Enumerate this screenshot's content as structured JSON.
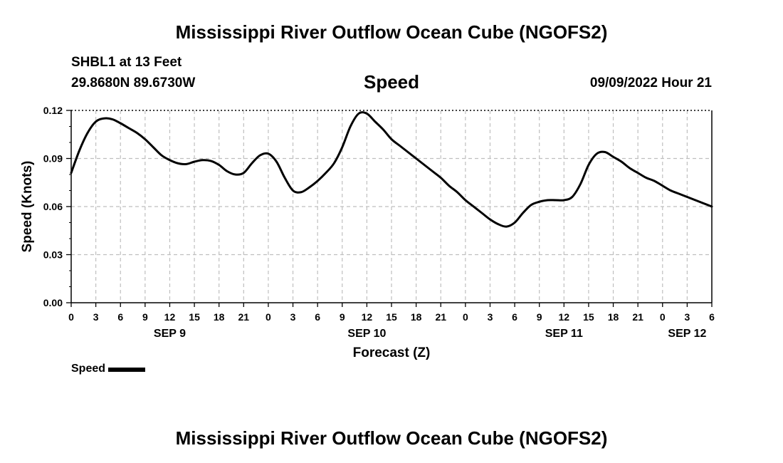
{
  "header": {
    "title": "Mississippi River Outflow Ocean Cube (NGOFS2)",
    "station": "SHBL1 at 13 Feet",
    "coords": "29.8680N  89.6730W",
    "parameter": "Speed",
    "timestamp": "09/09/2022 Hour 21"
  },
  "footer": {
    "title": "Mississippi River Outflow Ocean Cube (NGOFS2)"
  },
  "legend": {
    "label": "Speed"
  },
  "colors": {
    "line": "#000000",
    "grid": "#bfbfbf",
    "axis": "#000000"
  },
  "chart_data": {
    "type": "line",
    "title": "Speed",
    "xlabel": "Forecast (Z)",
    "ylabel": "Speed (Knots)",
    "xlim": [
      0,
      78
    ],
    "ylim": [
      0,
      0.12
    ],
    "grid": true,
    "x_tick_labels": [
      "0",
      "3",
      "6",
      "9",
      "12",
      "15",
      "18",
      "21",
      "0",
      "3",
      "6",
      "9",
      "12",
      "15",
      "18",
      "21",
      "0",
      "3",
      "6",
      "9",
      "12",
      "15",
      "18",
      "21",
      "0",
      "3",
      "6"
    ],
    "y_ticks": [
      0,
      0.03,
      0.06,
      0.09,
      0.12
    ],
    "y_tick_labels": [
      "0.00",
      "0.03",
      "0.06",
      "0.09",
      "0.12"
    ],
    "date_labels": [
      {
        "label": "SEP 9",
        "hour": 12
      },
      {
        "label": "SEP 10",
        "hour": 36
      },
      {
        "label": "SEP 11",
        "hour": 60
      },
      {
        "label": "SEP 12",
        "hour": 75
      }
    ],
    "series": [
      {
        "name": "Speed",
        "x": [
          0,
          1,
          2,
          3,
          4,
          5,
          6,
          7,
          8,
          9,
          10,
          11,
          12,
          13,
          14,
          15,
          16,
          17,
          18,
          19,
          20,
          21,
          22,
          23,
          24,
          25,
          26,
          27,
          28,
          29,
          30,
          31,
          32,
          33,
          34,
          35,
          36,
          37,
          38,
          39,
          40,
          41,
          42,
          43,
          44,
          45,
          46,
          47,
          48,
          49,
          50,
          51,
          52,
          53,
          54,
          55,
          56,
          57,
          58,
          59,
          60,
          61,
          62,
          63,
          64,
          65,
          66,
          67,
          68,
          69,
          70,
          71,
          72,
          73,
          74,
          75,
          76,
          77,
          78
        ],
        "values": [
          0.081,
          0.095,
          0.106,
          0.113,
          0.115,
          0.1145,
          0.112,
          0.109,
          0.106,
          0.102,
          0.097,
          0.092,
          0.089,
          0.087,
          0.0865,
          0.088,
          0.089,
          0.0885,
          0.086,
          0.082,
          0.08,
          0.081,
          0.087,
          0.092,
          0.093,
          0.088,
          0.078,
          0.07,
          0.069,
          0.072,
          0.076,
          0.081,
          0.087,
          0.097,
          0.11,
          0.118,
          0.118,
          0.113,
          0.108,
          0.102,
          0.098,
          0.094,
          0.09,
          0.086,
          0.082,
          0.078,
          0.073,
          0.069,
          0.064,
          0.06,
          0.056,
          0.052,
          0.049,
          0.0475,
          0.05,
          0.056,
          0.061,
          0.063,
          0.064,
          0.064,
          0.064,
          0.066,
          0.074,
          0.086,
          0.093,
          0.094,
          0.091,
          0.088,
          0.084,
          0.081,
          0.078,
          0.076,
          0.073,
          0.07,
          0.068,
          0.066,
          0.064,
          0.062,
          0.06
        ]
      }
    ]
  }
}
